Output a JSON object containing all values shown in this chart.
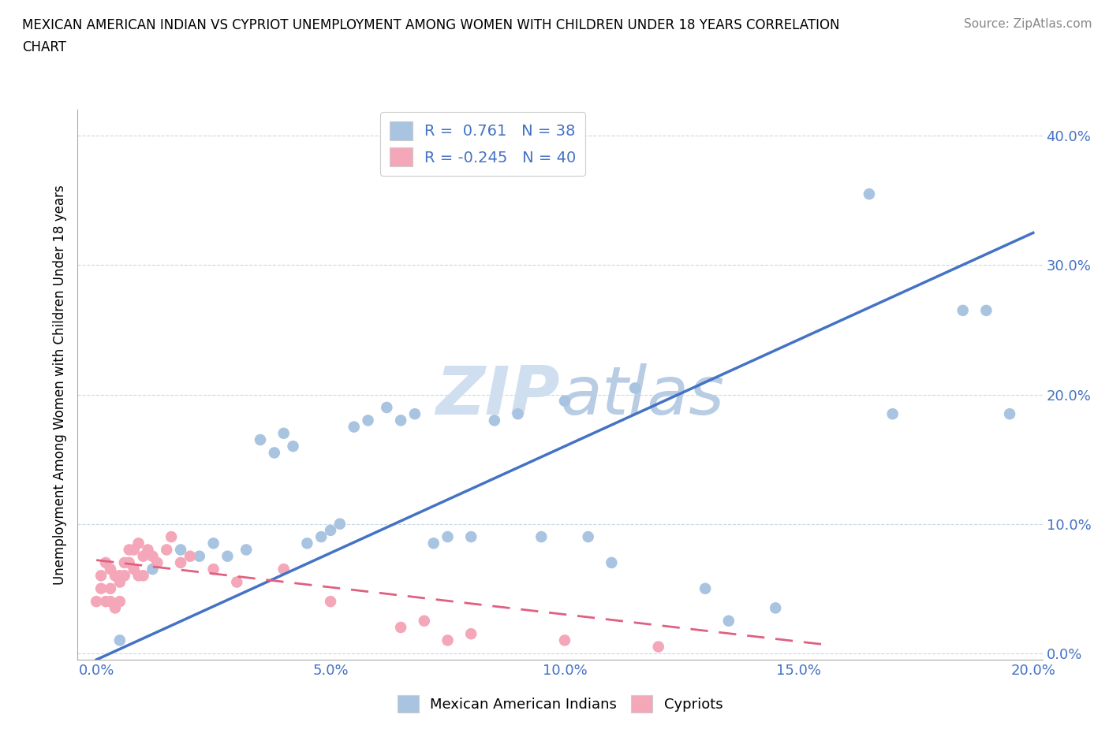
{
  "title_line1": "MEXICAN AMERICAN INDIAN VS CYPRIOT UNEMPLOYMENT AMONG WOMEN WITH CHILDREN UNDER 18 YEARS CORRELATION",
  "title_line2": "CHART",
  "source": "Source: ZipAtlas.com",
  "ylabel": "Unemployment Among Women with Children Under 18 years",
  "r_blue": 0.761,
  "n_blue": 38,
  "r_pink": -0.245,
  "n_pink": 40,
  "blue_color": "#a8c4e0",
  "blue_line_color": "#4472c4",
  "pink_color": "#f4a7b9",
  "pink_line_color": "#e06080",
  "watermark_color": "#d0dff0",
  "background_color": "#ffffff",
  "legend_label_blue": "Mexican American Indians",
  "legend_label_pink": "Cypriots",
  "xlim": [
    -0.004,
    0.202
  ],
  "ylim": [
    -0.005,
    0.42
  ],
  "xticks": [
    0.0,
    0.05,
    0.1,
    0.15,
    0.2
  ],
  "yticks_right": [
    0.0,
    0.1,
    0.2,
    0.3,
    0.4
  ],
  "blue_x": [
    0.005,
    0.012,
    0.018,
    0.022,
    0.025,
    0.028,
    0.032,
    0.035,
    0.038,
    0.04,
    0.042,
    0.045,
    0.048,
    0.05,
    0.052,
    0.055,
    0.058,
    0.062,
    0.065,
    0.068,
    0.072,
    0.075,
    0.08,
    0.085,
    0.09,
    0.095,
    0.1,
    0.105,
    0.11,
    0.115,
    0.13,
    0.135,
    0.145,
    0.165,
    0.17,
    0.185,
    0.19,
    0.195
  ],
  "blue_y": [
    0.01,
    0.065,
    0.08,
    0.075,
    0.085,
    0.075,
    0.08,
    0.165,
    0.155,
    0.17,
    0.16,
    0.085,
    0.09,
    0.095,
    0.1,
    0.175,
    0.18,
    0.19,
    0.18,
    0.185,
    0.085,
    0.09,
    0.09,
    0.18,
    0.185,
    0.09,
    0.195,
    0.09,
    0.07,
    0.205,
    0.05,
    0.025,
    0.035,
    0.355,
    0.185,
    0.265,
    0.265,
    0.185
  ],
  "pink_x": [
    0.0,
    0.001,
    0.001,
    0.002,
    0.002,
    0.003,
    0.003,
    0.003,
    0.004,
    0.004,
    0.005,
    0.005,
    0.005,
    0.006,
    0.006,
    0.007,
    0.007,
    0.008,
    0.008,
    0.009,
    0.009,
    0.01,
    0.01,
    0.011,
    0.012,
    0.013,
    0.015,
    0.016,
    0.018,
    0.02,
    0.025,
    0.03,
    0.04,
    0.05,
    0.065,
    0.07,
    0.075,
    0.08,
    0.1,
    0.12
  ],
  "pink_y": [
    0.04,
    0.06,
    0.05,
    0.07,
    0.04,
    0.065,
    0.05,
    0.04,
    0.06,
    0.035,
    0.055,
    0.04,
    0.06,
    0.07,
    0.06,
    0.08,
    0.07,
    0.08,
    0.065,
    0.085,
    0.06,
    0.075,
    0.06,
    0.08,
    0.075,
    0.07,
    0.08,
    0.09,
    0.07,
    0.075,
    0.065,
    0.055,
    0.065,
    0.04,
    0.02,
    0.025,
    0.01,
    0.015,
    0.01,
    0.005
  ],
  "blue_line_x": [
    0.0,
    0.2
  ],
  "blue_line_y_intercept": -0.005,
  "blue_line_slope": 1.65,
  "pink_line_x": [
    0.0,
    0.155
  ],
  "pink_line_y_intercept": 0.072,
  "pink_line_slope": -0.42
}
